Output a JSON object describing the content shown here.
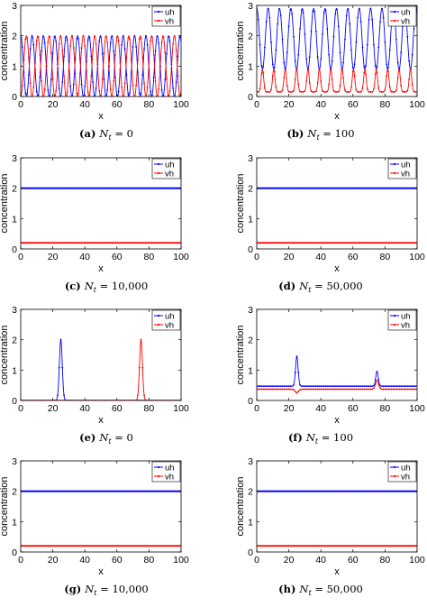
{
  "figure": {
    "ylabel": "concentration",
    "xlabel": "x",
    "xticks": [
      0,
      20,
      40,
      60,
      80,
      100
    ],
    "yticks": [
      0,
      1,
      2,
      3
    ],
    "xlim": [
      0,
      100
    ],
    "ylim": [
      0,
      3
    ],
    "colors": {
      "uh": "#0000ff",
      "vh": "#ff0000",
      "axis": "#000000"
    },
    "legend_location": "top-right",
    "legend_labels": [
      "uh",
      "vh"
    ]
  },
  "chart_data": [
    {
      "id": "a",
      "type": "line",
      "caption": {
        "letter": "(a)",
        "symbol": "N",
        "sub": "t",
        "value": "= 0"
      },
      "x": {
        "kind": "periodic",
        "lo": 0,
        "hi": 100
      },
      "series": [
        {
          "name": "uh",
          "color": "#0000ff",
          "profile": "cos",
          "min": 0,
          "max": 2,
          "period": 7.1,
          "phase": 0
        },
        {
          "name": "vh",
          "color": "#ff0000",
          "profile": "cos",
          "min": 0,
          "max": 2,
          "period": 7.1,
          "phase": 3.55
        }
      ]
    },
    {
      "id": "b",
      "type": "line",
      "caption": {
        "letter": "(b)",
        "symbol": "N",
        "sub": "t",
        "value": "= 100"
      },
      "x": {
        "kind": "periodic",
        "lo": 0,
        "hi": 100
      },
      "series": [
        {
          "name": "uh",
          "color": "#0000ff",
          "profile": "cos",
          "min": 0.9,
          "max": 2.9,
          "period": 7.1,
          "phase": 0
        },
        {
          "name": "vh",
          "color": "#ff0000",
          "profile": "spike",
          "min": 0.15,
          "max": 0.9,
          "period": 7.1,
          "phase": 3.55
        }
      ]
    },
    {
      "id": "c",
      "type": "line",
      "caption": {
        "letter": "(c)",
        "symbol": "N",
        "sub": "t",
        "value": "= 10,000"
      },
      "series": [
        {
          "name": "uh",
          "color": "#0000ff",
          "profile": "const",
          "value": 2.0
        },
        {
          "name": "vh",
          "color": "#ff0000",
          "profile": "const",
          "value": 0.2
        }
      ]
    },
    {
      "id": "d",
      "type": "line",
      "caption": {
        "letter": "(d)",
        "symbol": "N",
        "sub": "t",
        "value": "= 50,000"
      },
      "series": [
        {
          "name": "uh",
          "color": "#0000ff",
          "profile": "const",
          "value": 2.0
        },
        {
          "name": "vh",
          "color": "#ff0000",
          "profile": "const",
          "value": 0.2
        }
      ]
    },
    {
      "id": "e",
      "type": "line",
      "caption": {
        "letter": "(e)",
        "symbol": "N",
        "sub": "t",
        "value": "= 0"
      },
      "series": [
        {
          "name": "uh",
          "color": "#0000ff",
          "profile": "peak",
          "base": 0.0,
          "peak_x": 25,
          "peak_y": 2.0,
          "width": 0.9
        },
        {
          "name": "vh",
          "color": "#ff0000",
          "profile": "peak",
          "base": 0.0,
          "peak_x": 75,
          "peak_y": 2.0,
          "width": 0.9
        }
      ]
    },
    {
      "id": "f",
      "type": "line",
      "caption": {
        "letter": "(f)",
        "symbol": "N",
        "sub": "t",
        "value": "= 100"
      },
      "series": [
        {
          "name": "uh",
          "color": "#0000ff",
          "profile": "two-peaks",
          "base": 0.47,
          "peaks": [
            {
              "x": 25,
              "y": 1.45,
              "w": 0.8
            },
            {
              "x": 75,
              "y": 0.95,
              "w": 0.8
            }
          ]
        },
        {
          "name": "vh",
          "color": "#ff0000",
          "profile": "two-peaks",
          "base": 0.37,
          "peaks": [
            {
              "x": 25,
              "y": 0.25,
              "w": 1.0
            },
            {
              "x": 75,
              "y": 0.65,
              "w": 1.0
            }
          ]
        }
      ]
    },
    {
      "id": "g",
      "type": "line",
      "caption": {
        "letter": "(g)",
        "symbol": "N",
        "sub": "t",
        "value": "= 10,000"
      },
      "series": [
        {
          "name": "uh",
          "color": "#0000ff",
          "profile": "const",
          "value": 2.0
        },
        {
          "name": "vh",
          "color": "#ff0000",
          "profile": "const",
          "value": 0.2
        }
      ]
    },
    {
      "id": "h",
      "type": "line",
      "caption": {
        "letter": "(h)",
        "symbol": "N",
        "sub": "t",
        "value": "= 50,000"
      },
      "series": [
        {
          "name": "uh",
          "color": "#0000ff",
          "profile": "const",
          "value": 2.0
        },
        {
          "name": "vh",
          "color": "#ff0000",
          "profile": "const",
          "value": 0.2
        }
      ]
    }
  ]
}
